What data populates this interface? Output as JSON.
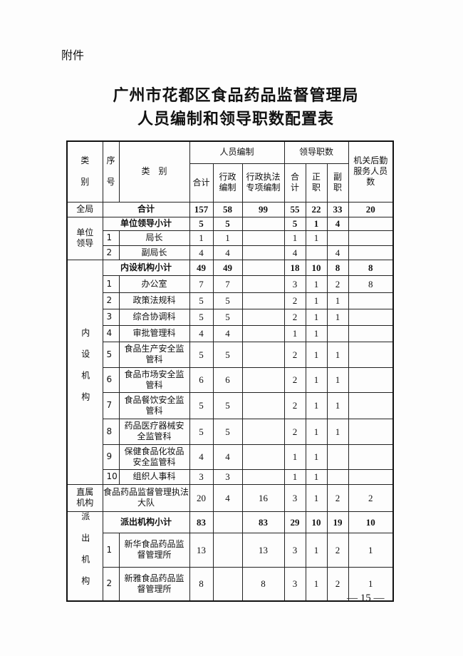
{
  "attachment_label": "附件",
  "title_line1": "广州市花都区食品药品监督管理局",
  "title_line2": "人员编制和领导职数配置表",
  "page_number": "— 15 —",
  "table": {
    "header": {
      "category": "类\n\n别",
      "seq": "序\n\n号",
      "name": "类　别",
      "staffing": "人员编制",
      "leadership": "领导职数",
      "logistics": "机关后勤服务人员数",
      "staff_total": "合计",
      "staff_admin": "行政编制",
      "staff_enforce": "行政执法专项编制",
      "lead_total": "合计",
      "lead_chief": "正职",
      "lead_deputy": "副职"
    },
    "groups": [
      {
        "category": "全局",
        "rows": [
          {
            "seq": null,
            "name": "合计",
            "bold": true,
            "values": [
              "157",
              "58",
              "99",
              "55",
              "22",
              "33",
              "20"
            ]
          }
        ]
      },
      {
        "category": "单位领导",
        "rows": [
          {
            "seq": null,
            "name": "单位领导小计",
            "bold": true,
            "values": [
              "5",
              "5",
              "",
              "5",
              "1",
              "4",
              ""
            ]
          },
          {
            "seq": "1",
            "name": "局长",
            "values": [
              "1",
              "1",
              "",
              "1",
              "1",
              "",
              ""
            ]
          },
          {
            "seq": "2",
            "name": "副局长",
            "values": [
              "4",
              "4",
              "",
              "4",
              "",
              "4",
              ""
            ]
          }
        ]
      },
      {
        "category": "内设机构",
        "vertical": true,
        "rows": [
          {
            "seq": null,
            "name": "内设机构小计",
            "bold": true,
            "values": [
              "49",
              "49",
              "",
              "18",
              "10",
              "8",
              "8"
            ]
          },
          {
            "seq": "1",
            "name": "办公室",
            "values": [
              "7",
              "7",
              "",
              "3",
              "1",
              "2",
              "8"
            ]
          },
          {
            "seq": "2",
            "name": "政策法规科",
            "values": [
              "5",
              "5",
              "",
              "2",
              "1",
              "1",
              ""
            ]
          },
          {
            "seq": "3",
            "name": "综合协调科",
            "values": [
              "5",
              "5",
              "",
              "2",
              "1",
              "1",
              ""
            ]
          },
          {
            "seq": "4",
            "name": "审批管理科",
            "values": [
              "4",
              "4",
              "",
              "1",
              "1",
              "",
              ""
            ]
          },
          {
            "seq": "5",
            "name": "食品生产安全监管科",
            "values": [
              "5",
              "5",
              "",
              "2",
              "1",
              "1",
              ""
            ]
          },
          {
            "seq": "6",
            "name": "食品市场安全监管科",
            "values": [
              "6",
              "6",
              "",
              "2",
              "1",
              "1",
              ""
            ]
          },
          {
            "seq": "7",
            "name": "食品餐饮安全监管科",
            "values": [
              "5",
              "5",
              "",
              "2",
              "1",
              "1",
              ""
            ]
          },
          {
            "seq": "8",
            "name": "药品医疗器械安全监管科",
            "values": [
              "5",
              "5",
              "",
              "2",
              "1",
              "1",
              ""
            ]
          },
          {
            "seq": "9",
            "name": "保健食品化妆品安全监管科",
            "values": [
              "4",
              "4",
              "",
              "1",
              "1",
              "",
              ""
            ]
          },
          {
            "seq": "10",
            "name": "组织人事科",
            "values": [
              "3",
              "3",
              "",
              "1",
              "1",
              "",
              ""
            ]
          }
        ]
      },
      {
        "category": "直属机构",
        "rows": [
          {
            "seq": null,
            "name": "食品药品监督管理执法大队",
            "values": [
              "20",
              "4",
              "16",
              "3",
              "1",
              "2",
              "2"
            ]
          }
        ]
      },
      {
        "category": "派出机构",
        "vertical": true,
        "rows": [
          {
            "seq": null,
            "name": "派出机构小计",
            "bold": true,
            "values": [
              "83",
              "",
              "83",
              "29",
              "10",
              "19",
              "10"
            ]
          },
          {
            "seq": "1",
            "name": "新华食品药品监督管理所",
            "values": [
              "13",
              "",
              "13",
              "3",
              "1",
              "2",
              "1"
            ]
          },
          {
            "seq": "2",
            "name": "新雅食品药品监督管理所",
            "values": [
              "8",
              "",
              "8",
              "3",
              "1",
              "2",
              "1"
            ]
          }
        ]
      }
    ]
  }
}
